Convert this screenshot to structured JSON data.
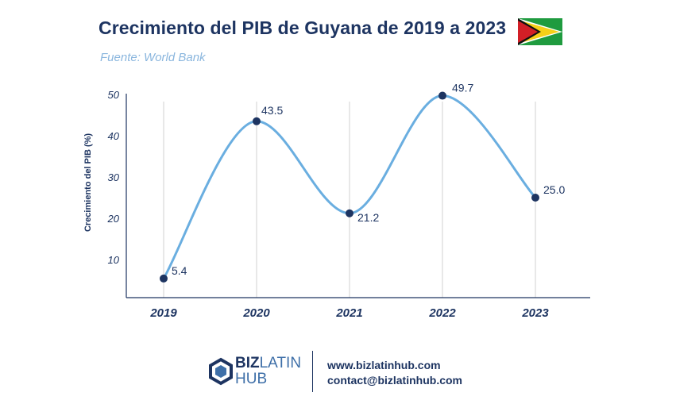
{
  "header": {
    "title": "Crecimiento del PIB de Guyana de 2019 a 2023",
    "subtitle": "Fuente: World Bank",
    "flag_icon": "guyana-flag-icon"
  },
  "chart_data": {
    "type": "line",
    "title": "Crecimiento del PIB de Guyana de 2019 a 2023",
    "subtitle": "Fuente: World Bank",
    "xlabel": "",
    "ylabel": "Crecimiento del PIB (%)",
    "categories": [
      "2019",
      "2020",
      "2021",
      "2022",
      "2023"
    ],
    "series": [
      {
        "values": [
          5.4,
          43.5,
          21.2,
          49.7,
          25.0
        ],
        "labels": [
          "5.4",
          "43.5",
          "21.2",
          "49.7",
          "25.0"
        ]
      }
    ],
    "yticks": [
      10,
      20,
      30,
      40,
      50
    ],
    "ylim": [
      0,
      50
    ],
    "grid": "vertical",
    "smooth": true,
    "colors": {
      "line": "#6aaee0",
      "marker": "#1d3461",
      "axis": "#1d3461",
      "grid": "#d0d0d0"
    }
  },
  "footer": {
    "logo_top": "BIZ",
    "logo_latin": "LATIN",
    "logo_bottom": "HUB",
    "website": "www.bizlatinhub.com",
    "email": "contact@bizlatinhub.com"
  }
}
